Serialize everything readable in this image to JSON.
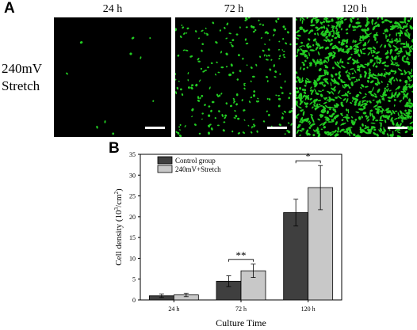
{
  "panel_a": {
    "letter": "A",
    "row_label_line1": "240mV",
    "row_label_line2": "Stretch",
    "time_labels": [
      "24 h",
      "72 h",
      "120 h"
    ],
    "cell_color": "#22cc22"
  },
  "panel_b": {
    "letter": "B"
  },
  "chart_data": {
    "type": "bar",
    "categories": [
      "24 h",
      "72 h",
      "120 h"
    ],
    "series": [
      {
        "name": "Control group",
        "values": [
          1.0,
          4.5,
          21.0
        ],
        "errors": [
          0.4,
          1.3,
          3.2
        ],
        "color": "#3f3f3f"
      },
      {
        "name": "240mV+Stretch",
        "values": [
          1.2,
          7.0,
          27.0
        ],
        "errors": [
          0.4,
          1.6,
          5.3
        ],
        "color": "#c8c8c8"
      }
    ],
    "xlabel": "Culture Time",
    "ylabel": "Cell density (10",
    "ylabel_sup": "3",
    "ylabel_mid": "/cm",
    "ylabel_sup2": "2",
    "ylabel_end": ")",
    "ylim": [
      0,
      35
    ],
    "yticks": [
      0,
      5,
      10,
      15,
      20,
      25,
      30,
      35
    ],
    "legend_position": "top-left",
    "significance": [
      {
        "category": "72 h",
        "label": "**"
      },
      {
        "category": "120 h",
        "label": "*"
      }
    ]
  }
}
